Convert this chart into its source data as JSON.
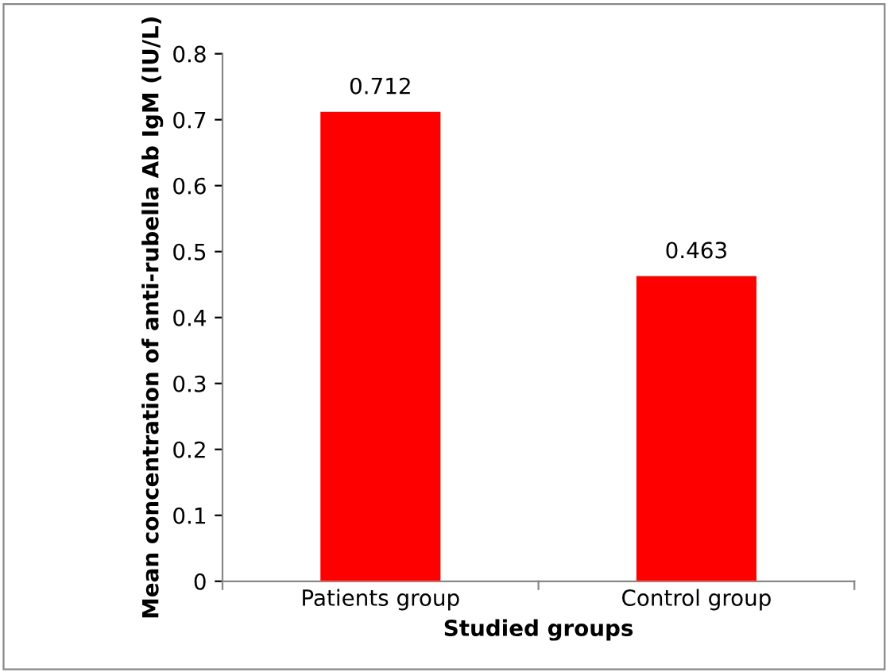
{
  "chart_data": {
    "type": "bar",
    "categories": [
      "Patients group",
      "Control group"
    ],
    "values": [
      0.712,
      0.463
    ],
    "color": "#ff0000",
    "xlabel": "Studied groups",
    "ylabel": "Mean concentration of anti-rubella Ab IgM (IU/L)",
    "ylim": [
      0,
      0.8
    ],
    "yticks": [
      {
        "value": 0,
        "label": "0"
      },
      0.1,
      0.2,
      0.3,
      0.4,
      0.5,
      0.6,
      0.7,
      0.8
    ],
    "data_labels": true,
    "grid": false,
    "legend": false
  }
}
